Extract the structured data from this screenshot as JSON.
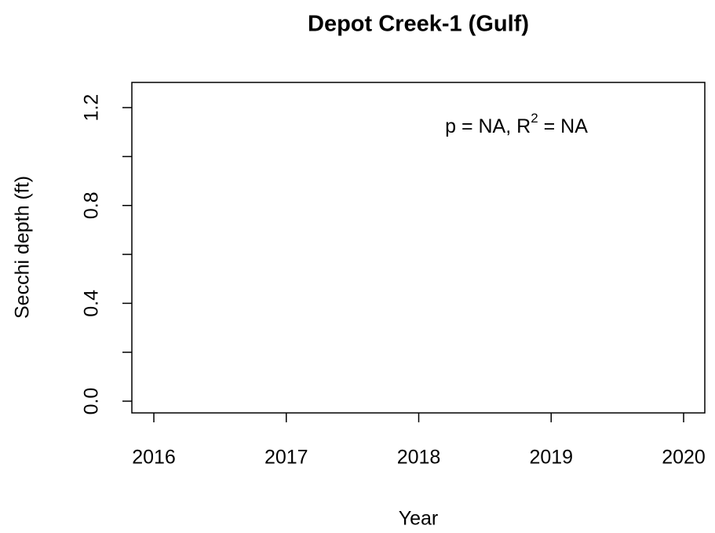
{
  "chart_data": {
    "type": "scatter",
    "title": "Depot Creek-1 (Gulf)",
    "x_label": "Year",
    "y_label": "Secchi depth (ft)",
    "annotation": [
      "p = NA, R",
      "2",
      " = NA"
    ],
    "x": [],
    "values": [],
    "xlim": [
      2015.834,
      2020.16
    ],
    "xticks": [
      2016,
      2017,
      2018,
      2019,
      2020
    ],
    "ylim": [
      -0.048,
      1.303
    ],
    "yticks": [
      {
        "value": 0,
        "label": "0.0"
      },
      0.4,
      0.8,
      1.2
    ],
    "yminor_ticks": [
      0.2,
      0.6,
      1.0
    ]
  }
}
